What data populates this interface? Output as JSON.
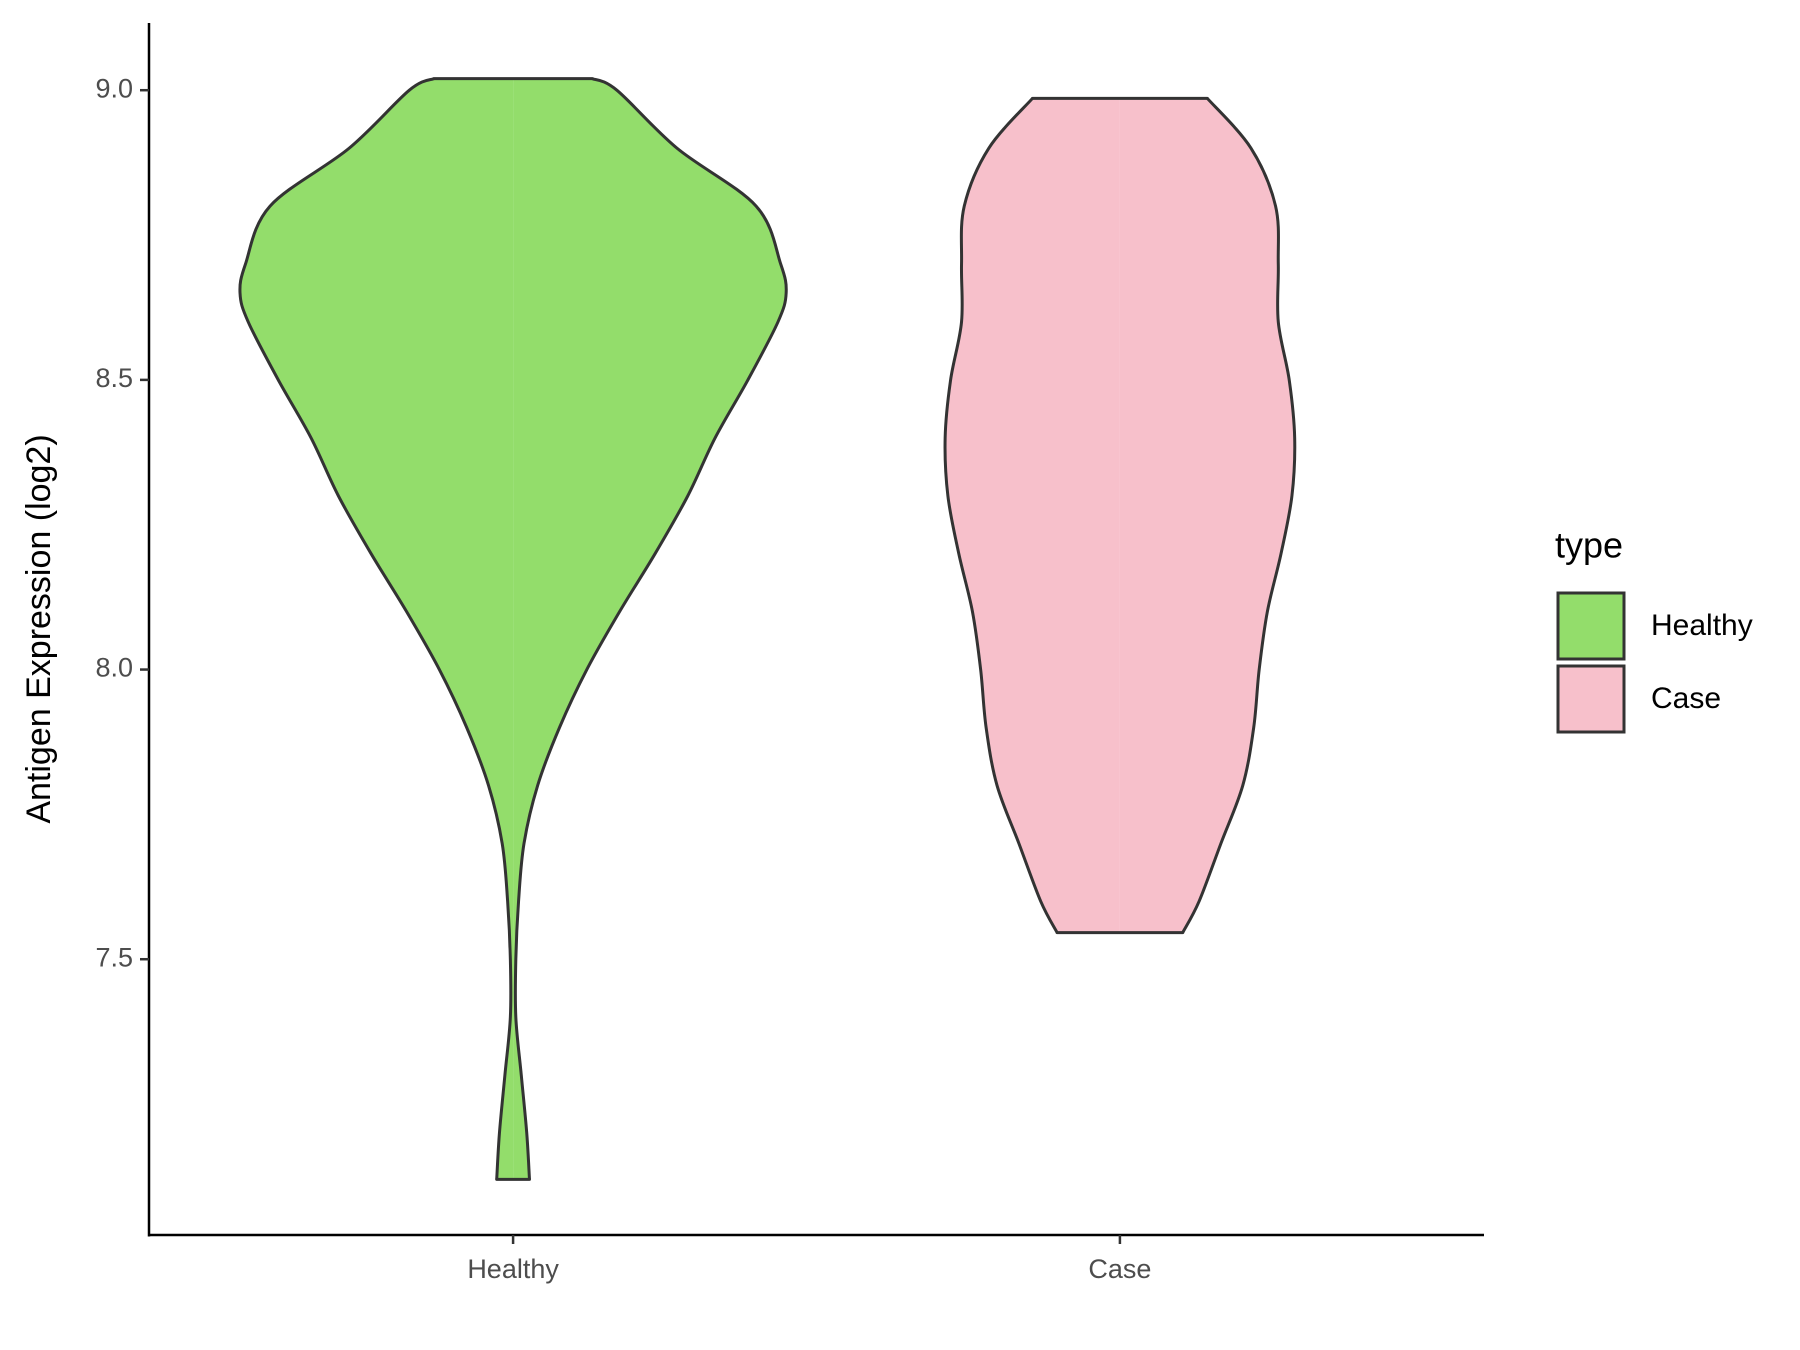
{
  "chart_data": {
    "type": "violin",
    "y_label": "Antigen Expression (log2)",
    "categories": [
      "Healthy",
      "Case"
    ],
    "legend_title": "type",
    "ylim": [
      7.024,
      9.116
    ],
    "yticks": [
      7.5,
      {
        "value": 8,
        "label": "8.0"
      },
      8.5,
      {
        "value": 9,
        "label": "9.0"
      }
    ],
    "series": [
      {
        "name": "Healthy",
        "color": "#93dd6b",
        "y": [
          7.12,
          7.2,
          7.3,
          7.4,
          7.5,
          7.6,
          7.7,
          7.8,
          7.9,
          8.0,
          8.1,
          8.2,
          8.3,
          8.4,
          8.5,
          8.6,
          8.65,
          8.7,
          8.8,
          8.9,
          9.0,
          9.02
        ],
        "density": [
          0.06,
          0.05,
          0.03,
          0.01,
          0.01,
          0.02,
          0.04,
          0.09,
          0.17,
          0.27,
          0.39,
          0.52,
          0.64,
          0.74,
          0.86,
          0.97,
          1.0,
          0.98,
          0.89,
          0.6,
          0.38,
          0.29
        ]
      },
      {
        "name": "Case",
        "color": "#f7c0cb",
        "y": [
          7.546,
          7.6,
          7.7,
          7.8,
          7.9,
          8.0,
          8.1,
          8.2,
          8.3,
          8.4,
          8.5,
          8.6,
          8.7,
          8.8,
          8.9,
          8.986
        ],
        "density": [
          0.23,
          0.29,
          0.37,
          0.45,
          0.49,
          0.51,
          0.54,
          0.59,
          0.63,
          0.64,
          0.62,
          0.58,
          0.58,
          0.57,
          0.48,
          0.32
        ]
      }
    ]
  }
}
